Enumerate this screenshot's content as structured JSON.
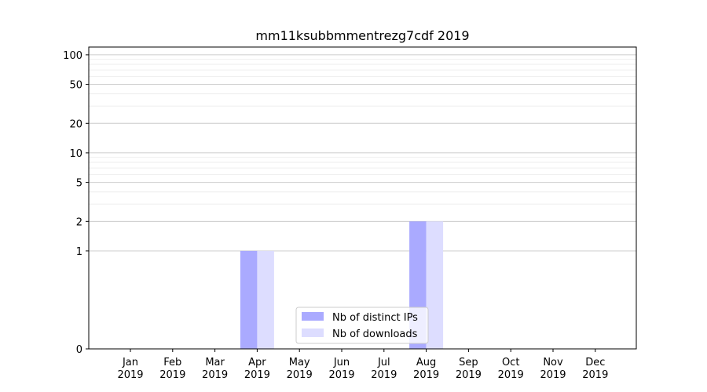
{
  "chart_data": {
    "type": "bar",
    "title": "mm11ksubbmmentrezg7cdf 2019",
    "xlabel": "",
    "ylabel": "",
    "yscale": "symlog",
    "ylim": [
      0,
      120
    ],
    "yticks": [
      0,
      1,
      2,
      5,
      10,
      20,
      50,
      100
    ],
    "ytick_labels": [
      "0",
      "1",
      "2",
      "5",
      "10",
      "20",
      "50",
      "100"
    ],
    "grid": true,
    "legend_position": "bottom-center",
    "categories": [
      {
        "month": "Jan",
        "year": "2019"
      },
      {
        "month": "Feb",
        "year": "2019"
      },
      {
        "month": "Mar",
        "year": "2019"
      },
      {
        "month": "Apr",
        "year": "2019"
      },
      {
        "month": "May",
        "year": "2019"
      },
      {
        "month": "Jun",
        "year": "2019"
      },
      {
        "month": "Jul",
        "year": "2019"
      },
      {
        "month": "Aug",
        "year": "2019"
      },
      {
        "month": "Sep",
        "year": "2019"
      },
      {
        "month": "Oct",
        "year": "2019"
      },
      {
        "month": "Nov",
        "year": "2019"
      },
      {
        "month": "Dec",
        "year": "2019"
      }
    ],
    "series": [
      {
        "name": "Nb of distinct IPs",
        "color": "#aaaaff",
        "values": [
          0,
          0,
          0,
          1,
          0,
          0,
          0,
          2,
          0,
          0,
          0,
          0
        ]
      },
      {
        "name": "Nb of downloads",
        "color": "#ddddff",
        "values": [
          0,
          0,
          0,
          1,
          0,
          0,
          0,
          2,
          0,
          0,
          0,
          0
        ]
      }
    ]
  }
}
